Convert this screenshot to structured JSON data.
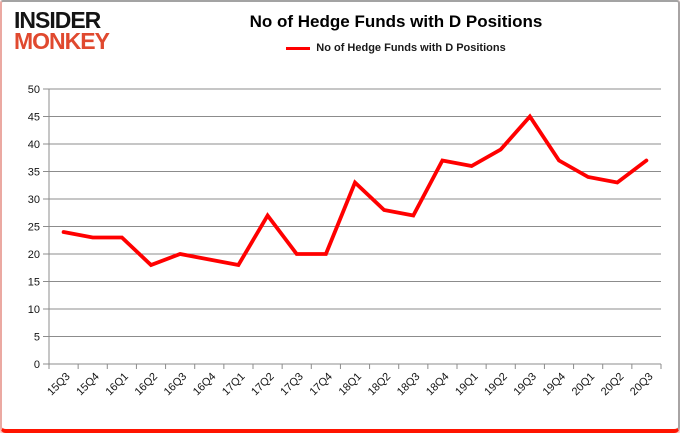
{
  "logo": {
    "line1": "INSIDER",
    "line2": "MONKEY",
    "line1_color": "#141414",
    "line2_color": "#e0492f"
  },
  "header": {
    "title": "No of Hedge Funds with D Positions"
  },
  "legend": {
    "label": "No of Hedge Funds with D Positions",
    "swatch_color": "#ff0000"
  },
  "chart_data": {
    "type": "line",
    "title": "No of Hedge Funds with D Positions",
    "categories": [
      "15Q3",
      "15Q4",
      "16Q1",
      "16Q2",
      "16Q3",
      "16Q4",
      "17Q1",
      "17Q2",
      "17Q3",
      "17Q4",
      "18Q1",
      "18Q2",
      "18Q3",
      "18Q4",
      "19Q1",
      "19Q2",
      "19Q3",
      "19Q4",
      "20Q1",
      "20Q2",
      "20Q3"
    ],
    "series": [
      {
        "name": "No of Hedge Funds with D Positions",
        "color": "#ff0000",
        "values": [
          24,
          23,
          23,
          18,
          20,
          19,
          18,
          27,
          20,
          20,
          33,
          28,
          27,
          37,
          36,
          39,
          45,
          37,
          34,
          33,
          37
        ]
      }
    ],
    "xlabel": "",
    "ylabel": "",
    "ylim": [
      0,
      50
    ],
    "ytick_step": 5,
    "grid": true,
    "legend_position": "top",
    "gridline_color": "#8c8c8c",
    "axis_color": "#8c8c8c",
    "tick_label_color": "#141414"
  }
}
